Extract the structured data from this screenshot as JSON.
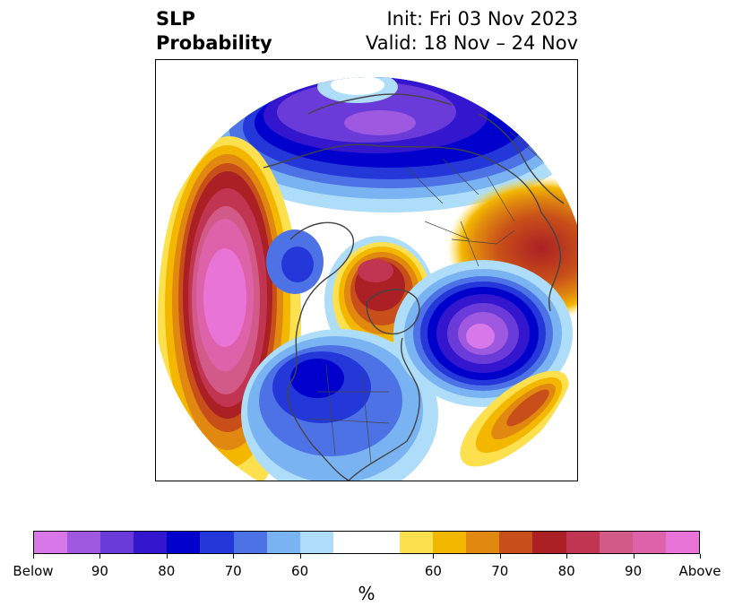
{
  "title": {
    "left_line1": "SLP",
    "left_line2": "Probability",
    "right_line1": "Init: Fri 03 Nov 2023",
    "right_line2": "Valid: 18 Nov – 24 Nov"
  },
  "colorbar": {
    "colors": [
      "#d877e8",
      "#9f58e0",
      "#6b3bd9",
      "#3416cf",
      "#0000cc",
      "#2438d9",
      "#4d72e6",
      "#7ab3f2",
      "#aeddf9",
      "#ffffff",
      "#ffffff",
      "#fde04d",
      "#f3b700",
      "#e0880f",
      "#c84f19",
      "#ab2025",
      "#c23552",
      "#d25a88",
      "#de62a9",
      "#e874d8"
    ],
    "tick_labels": [
      "Below",
      "90",
      "80",
      "70",
      "60",
      "60",
      "70",
      "80",
      "90",
      "Above"
    ],
    "unit": "%"
  },
  "map": {
    "projection": "north-polar-stereographic",
    "variable": "sea level pressure tercile probability",
    "features": [
      {
        "region": "Aleutians / North Pacific",
        "category": "above",
        "peak": "Above"
      },
      {
        "region": "Central Arctic / north of Greenland",
        "category": "above",
        "peak": "80"
      },
      {
        "region": "Western Russia / Scandinavia",
        "category": "above",
        "peak": "70"
      },
      {
        "region": "Central Asia / Siberia",
        "category": "below",
        "peak": "90"
      },
      {
        "region": "North Atlantic south of Iceland",
        "category": "below",
        "peak": "Below"
      },
      {
        "region": "Central North America",
        "category": "below",
        "peak": "80"
      },
      {
        "region": "Eastern Atlantic",
        "category": "above",
        "peak": "80"
      }
    ]
  }
}
